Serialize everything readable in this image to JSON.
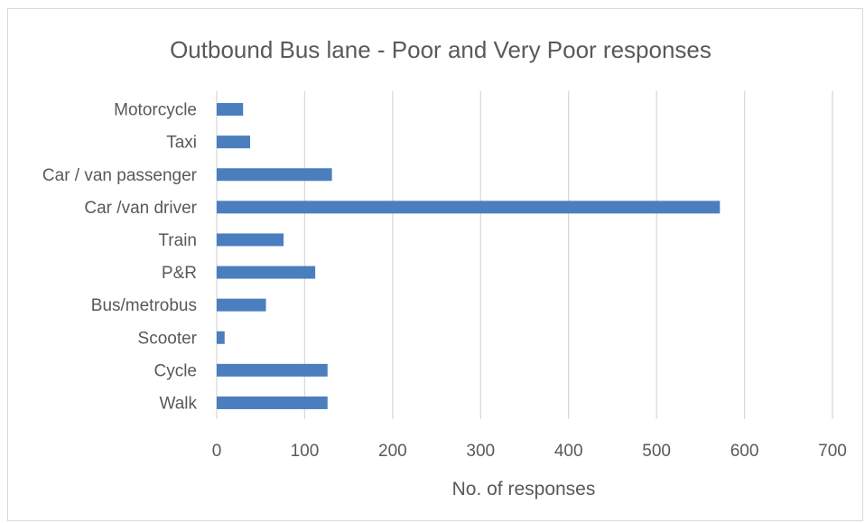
{
  "chart_data": {
    "type": "bar",
    "orientation": "horizontal",
    "title": "Outbound Bus lane - Poor and Very Poor responses",
    "xlabel": "No. of responses",
    "ylabel": "",
    "xlim": [
      0,
      700
    ],
    "xticks": [
      "0",
      "100",
      "200",
      "300",
      "400",
      "500",
      "600",
      "700"
    ],
    "grid": "vertical",
    "legend": "none",
    "bar_color": "#4a7ebf",
    "grid_color": "#d9d9d9",
    "categories": [
      "Motorcycle",
      "Taxi",
      "Car / van passenger",
      "Car /van driver",
      "Train",
      "P&R",
      "Bus/metrobus",
      "Scooter",
      "Cycle",
      "Walk"
    ],
    "values": [
      30,
      38,
      131,
      572,
      76,
      112,
      56,
      9,
      126,
      126
    ]
  }
}
